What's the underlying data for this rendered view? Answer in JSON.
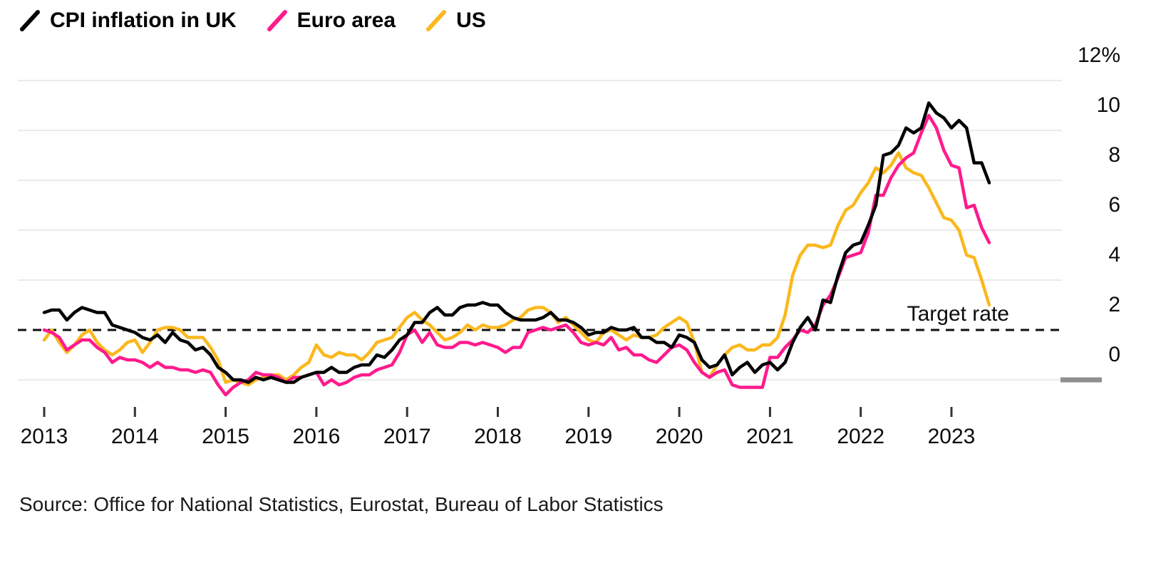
{
  "legend": {
    "items": [
      "CPI inflation in UK",
      "Euro area",
      "US"
    ]
  },
  "chart_data": {
    "type": "line",
    "title": "",
    "x_unit": "month",
    "x_start_year": 2013,
    "x_tick_years": [
      2013,
      2014,
      2015,
      2016,
      2017,
      2018,
      2019,
      2020,
      2021,
      2022,
      2023
    ],
    "ylim": [
      -1.5,
      12.4
    ],
    "y_ticks": [
      0,
      2,
      4,
      6,
      8,
      10,
      12
    ],
    "y_tick_labels": [
      "0",
      "2",
      "4",
      "6",
      "8",
      "10",
      "12%"
    ],
    "grid": "horizontal",
    "legend_position": "top-left",
    "target_line": {
      "value": 2,
      "label": "Target rate",
      "style": "dashed",
      "color": "#111111"
    },
    "colors": {
      "gridline": "#e3e3e3",
      "zero_marker": "#8f8f8f",
      "tick": "#333333"
    },
    "series": [
      {
        "key": "uk",
        "name": "CPI inflation in UK",
        "color": "#000000",
        "values": [
          2.7,
          2.8,
          2.8,
          2.4,
          2.7,
          2.9,
          2.8,
          2.7,
          2.7,
          2.2,
          2.1,
          2.0,
          1.9,
          1.7,
          1.6,
          1.8,
          1.5,
          1.9,
          1.6,
          1.5,
          1.2,
          1.3,
          1.0,
          0.5,
          0.3,
          0.0,
          0.0,
          -0.1,
          0.1,
          0.0,
          0.1,
          0.0,
          -0.1,
          -0.1,
          0.1,
          0.2,
          0.3,
          0.3,
          0.5,
          0.3,
          0.3,
          0.5,
          0.6,
          0.6,
          1.0,
          0.9,
          1.2,
          1.6,
          1.8,
          2.3,
          2.3,
          2.7,
          2.9,
          2.6,
          2.6,
          2.9,
          3.0,
          3.0,
          3.1,
          3.0,
          3.0,
          2.7,
          2.5,
          2.4,
          2.4,
          2.4,
          2.5,
          2.7,
          2.4,
          2.4,
          2.3,
          2.1,
          1.8,
          1.9,
          1.9,
          2.1,
          2.0,
          2.0,
          2.1,
          1.7,
          1.7,
          1.5,
          1.5,
          1.3,
          1.8,
          1.7,
          1.5,
          0.8,
          0.5,
          0.6,
          1.0,
          0.2,
          0.5,
          0.7,
          0.3,
          0.6,
          0.7,
          0.4,
          0.7,
          1.5,
          2.1,
          2.5,
          2.0,
          3.2,
          3.1,
          4.2,
          5.1,
          5.4,
          5.5,
          6.2,
          7.0,
          9.0,
          9.1,
          9.4,
          10.1,
          9.9,
          10.1,
          11.1,
          10.7,
          10.5,
          10.1,
          10.4,
          10.1,
          8.7,
          8.7,
          7.9
        ]
      },
      {
        "key": "euro-area",
        "name": "Euro area",
        "color": "#ff1a8c",
        "values": [
          2.0,
          1.9,
          1.7,
          1.2,
          1.4,
          1.6,
          1.6,
          1.3,
          1.1,
          0.7,
          0.9,
          0.8,
          0.8,
          0.7,
          0.5,
          0.7,
          0.5,
          0.5,
          0.4,
          0.4,
          0.3,
          0.4,
          0.3,
          -0.2,
          -0.6,
          -0.3,
          -0.1,
          0.0,
          0.3,
          0.2,
          0.2,
          0.1,
          -0.1,
          0.1,
          0.1,
          0.2,
          0.3,
          -0.2,
          0.0,
          -0.2,
          -0.1,
          0.1,
          0.2,
          0.2,
          0.4,
          0.5,
          0.6,
          1.1,
          1.8,
          2.0,
          1.5,
          1.9,
          1.4,
          1.3,
          1.3,
          1.5,
          1.5,
          1.4,
          1.5,
          1.4,
          1.3,
          1.1,
          1.3,
          1.3,
          1.9,
          2.0,
          2.1,
          2.0,
          2.1,
          2.2,
          1.9,
          1.5,
          1.4,
          1.5,
          1.4,
          1.7,
          1.2,
          1.3,
          1.0,
          1.0,
          0.8,
          0.7,
          1.0,
          1.3,
          1.4,
          1.2,
          0.7,
          0.3,
          0.1,
          0.3,
          0.4,
          -0.2,
          -0.3,
          -0.3,
          -0.3,
          -0.3,
          0.9,
          0.9,
          1.3,
          1.6,
          2.0,
          1.9,
          2.2,
          3.0,
          3.4,
          4.1,
          4.9,
          5.0,
          5.1,
          5.9,
          7.4,
          7.4,
          8.1,
          8.6,
          8.9,
          9.1,
          9.9,
          10.6,
          10.1,
          9.2,
          8.6,
          8.5,
          6.9,
          7.0,
          6.1,
          5.5
        ]
      },
      {
        "key": "us",
        "name": "US",
        "color": "#fbb81d",
        "values": [
          1.6,
          2.0,
          1.5,
          1.1,
          1.4,
          1.8,
          2.0,
          1.5,
          1.2,
          1.0,
          1.2,
          1.5,
          1.6,
          1.1,
          1.5,
          2.0,
          2.1,
          2.1,
          2.0,
          1.7,
          1.7,
          1.7,
          1.3,
          0.8,
          -0.1,
          0.0,
          -0.1,
          -0.2,
          0.0,
          0.1,
          0.2,
          0.2,
          0.0,
          0.2,
          0.5,
          0.7,
          1.4,
          1.0,
          0.9,
          1.1,
          1.0,
          1.0,
          0.8,
          1.1,
          1.5,
          1.6,
          1.7,
          2.1,
          2.5,
          2.7,
          2.4,
          2.2,
          1.9,
          1.6,
          1.7,
          1.9,
          2.2,
          2.0,
          2.2,
          2.1,
          2.1,
          2.2,
          2.4,
          2.5,
          2.8,
          2.9,
          2.9,
          2.7,
          2.3,
          2.5,
          2.2,
          1.9,
          1.6,
          1.5,
          1.9,
          2.0,
          1.8,
          1.6,
          1.8,
          1.7,
          1.7,
          1.8,
          2.1,
          2.3,
          2.5,
          2.3,
          1.5,
          0.3,
          0.1,
          0.6,
          1.0,
          1.3,
          1.4,
          1.2,
          1.2,
          1.4,
          1.4,
          1.7,
          2.6,
          4.2,
          5.0,
          5.4,
          5.4,
          5.3,
          5.4,
          6.2,
          6.8,
          7.0,
          7.5,
          7.9,
          8.5,
          8.3,
          8.6,
          9.1,
          8.5,
          8.3,
          8.2,
          7.7,
          7.1,
          6.5,
          6.4,
          6.0,
          5.0,
          4.9,
          4.0,
          3.0
        ]
      }
    ],
    "source": "Source: Office for National Statistics, Eurostat, Bureau of Labor Statistics"
  }
}
